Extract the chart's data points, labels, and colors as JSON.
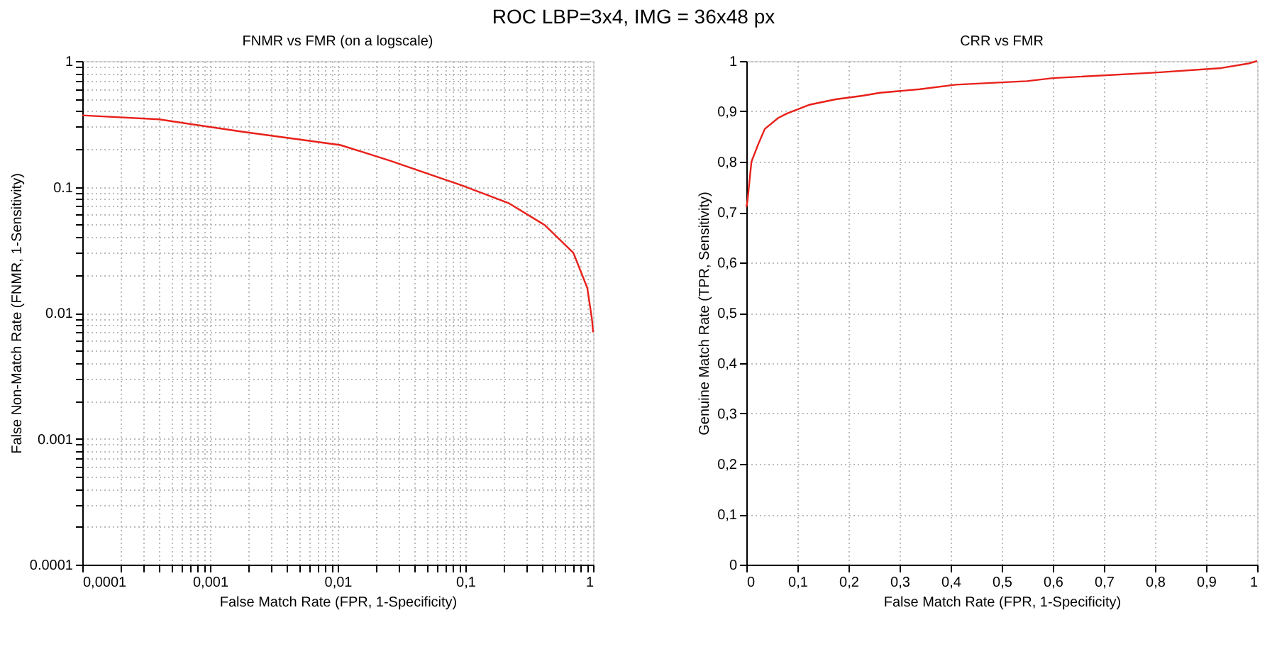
{
  "chart_data": [
    {
      "type": "line",
      "title": "FNMR vs FMR (on a logscale)",
      "annotations": [
        "ROC LBP=3x4,  IMG = 36x48 px"
      ],
      "xlabel": "False Match Rate (FPR, 1-Specificity)",
      "ylabel": "False Non-Match Rate (FNMR, 1-Sensitivity)",
      "log": "xy",
      "grid": true,
      "color": "#e8201a",
      "x": [
        0.0001,
        0.0004,
        0.0018,
        0.0105,
        0.026,
        0.093,
        0.22,
        0.42,
        0.7,
        0.9,
        0.98,
        1.0
      ],
      "values": [
        0.37,
        0.344,
        0.274,
        0.215,
        0.161,
        0.103,
        0.074,
        0.0496,
        0.03,
        0.0158,
        0.0089,
        0.007
      ],
      "xlim": [
        0.0001,
        1
      ],
      "ylim": [
        0.0001,
        1
      ],
      "xticks": [
        {
          "value": 0.0001,
          "label": "0,0001"
        },
        {
          "value": 0.0002,
          "label": null
        },
        {
          "value": 0.0003,
          "label": null
        },
        {
          "value": 0.0004,
          "label": null
        },
        {
          "value": 0.0005,
          "label": null
        },
        {
          "value": 0.0006,
          "label": null
        },
        {
          "value": 0.0007,
          "label": null
        },
        {
          "value": 0.0008,
          "label": null
        },
        {
          "value": 0.0009,
          "label": null
        },
        {
          "value": 0.001,
          "label": "0,001"
        },
        {
          "value": 0.002,
          "label": null
        },
        {
          "value": 0.003,
          "label": null
        },
        {
          "value": 0.004,
          "label": null
        },
        {
          "value": 0.005,
          "label": null
        },
        {
          "value": 0.006,
          "label": null
        },
        {
          "value": 0.007,
          "label": null
        },
        {
          "value": 0.008,
          "label": null
        },
        {
          "value": 0.009,
          "label": null
        },
        {
          "value": 0.01,
          "label": "0,01"
        },
        {
          "value": 0.02,
          "label": null
        },
        {
          "value": 0.03,
          "label": null
        },
        {
          "value": 0.04,
          "label": null
        },
        {
          "value": 0.05,
          "label": null
        },
        {
          "value": 0.06,
          "label": null
        },
        {
          "value": 0.07,
          "label": null
        },
        {
          "value": 0.08,
          "label": null
        },
        {
          "value": 0.09,
          "label": null
        },
        {
          "value": 0.1,
          "label": "0,1"
        },
        {
          "value": 0.2,
          "label": null
        },
        {
          "value": 0.3,
          "label": null
        },
        {
          "value": 0.4,
          "label": null
        },
        {
          "value": 0.5,
          "label": null
        },
        {
          "value": 0.6,
          "label": null
        },
        {
          "value": 0.7,
          "label": null
        },
        {
          "value": 0.8,
          "label": null
        },
        {
          "value": 0.9,
          "label": null
        },
        1
      ],
      "yticks": [
        {
          "value": 0.0001,
          "label": "0.0001"
        },
        {
          "value": 0.0002,
          "label": null
        },
        {
          "value": 0.0003,
          "label": null
        },
        {
          "value": 0.0004,
          "label": null
        },
        {
          "value": 0.0005,
          "label": null
        },
        {
          "value": 0.0006,
          "label": null
        },
        {
          "value": 0.0007,
          "label": null
        },
        {
          "value": 0.0008,
          "label": null
        },
        {
          "value": 0.0009,
          "label": null
        },
        0.001,
        {
          "value": 0.002,
          "label": null
        },
        {
          "value": 0.003,
          "label": null
        },
        {
          "value": 0.004,
          "label": null
        },
        {
          "value": 0.005,
          "label": null
        },
        {
          "value": 0.006,
          "label": null
        },
        {
          "value": 0.007,
          "label": null
        },
        {
          "value": 0.008,
          "label": null
        },
        {
          "value": 0.009,
          "label": null
        },
        0.01,
        {
          "value": 0.02,
          "label": null
        },
        {
          "value": 0.03,
          "label": null
        },
        {
          "value": 0.04,
          "label": null
        },
        {
          "value": 0.05,
          "label": null
        },
        {
          "value": 0.06,
          "label": null
        },
        {
          "value": 0.07,
          "label": null
        },
        {
          "value": 0.08,
          "label": null
        },
        {
          "value": 0.09,
          "label": null
        },
        0.1,
        {
          "value": 0.2,
          "label": null
        },
        {
          "value": 0.3,
          "label": null
        },
        {
          "value": 0.4,
          "label": null
        },
        {
          "value": 0.5,
          "label": null
        },
        {
          "value": 0.6,
          "label": null
        },
        {
          "value": 0.7,
          "label": null
        },
        {
          "value": 0.8,
          "label": null
        },
        {
          "value": 0.9,
          "label": null
        },
        1
      ]
    },
    {
      "type": "line",
      "title": "CRR vs FMR",
      "xlabel": "False Match Rate (FPR, 1-Specificity)",
      "ylabel": "Genuine Match Rate (TPR, Sensitivity)",
      "grid": true,
      "color": "#e8201a",
      "x": [
        0,
        0.002,
        0.01,
        0.023,
        0.036,
        0.0625,
        0.08,
        0.123,
        0.175,
        0.227,
        0.262,
        0.34,
        0.41,
        0.549,
        0.6,
        0.8,
        0.93,
        0.983,
        1.0
      ],
      "values": [
        0.71,
        0.72,
        0.8,
        0.834,
        0.865,
        0.887,
        0.896,
        0.913,
        0.924,
        0.931,
        0.937,
        0.944,
        0.953,
        0.96,
        0.966,
        0.977,
        0.986,
        0.995,
        1.0
      ],
      "xlim": [
        0,
        1
      ],
      "ylim": [
        0,
        1
      ],
      "xticks": [
        0,
        {
          "value": 0.1,
          "label": "0,1"
        },
        {
          "value": 0.2,
          "label": "0,2"
        },
        {
          "value": 0.3,
          "label": "0,3"
        },
        {
          "value": 0.4,
          "label": "0,4"
        },
        {
          "value": 0.5,
          "label": "0,5"
        },
        {
          "value": 0.6,
          "label": "0,6"
        },
        {
          "value": 0.7,
          "label": "0,7"
        },
        {
          "value": 0.8,
          "label": "0,8"
        },
        {
          "value": 0.9,
          "label": "0,9"
        },
        1
      ],
      "yticks": [
        0,
        {
          "value": 0.1,
          "label": "0,1"
        },
        {
          "value": 0.2,
          "label": "0,2"
        },
        {
          "value": 0.3,
          "label": "0,3"
        },
        {
          "value": 0.4,
          "label": "0,4"
        },
        {
          "value": 0.5,
          "label": "0,5"
        },
        {
          "value": 0.6,
          "label": "0,6"
        },
        {
          "value": 0.7,
          "label": "0,7"
        },
        {
          "value": 0.8,
          "label": "0,8"
        },
        {
          "value": 0.9,
          "label": "0,9"
        },
        1
      ]
    }
  ]
}
